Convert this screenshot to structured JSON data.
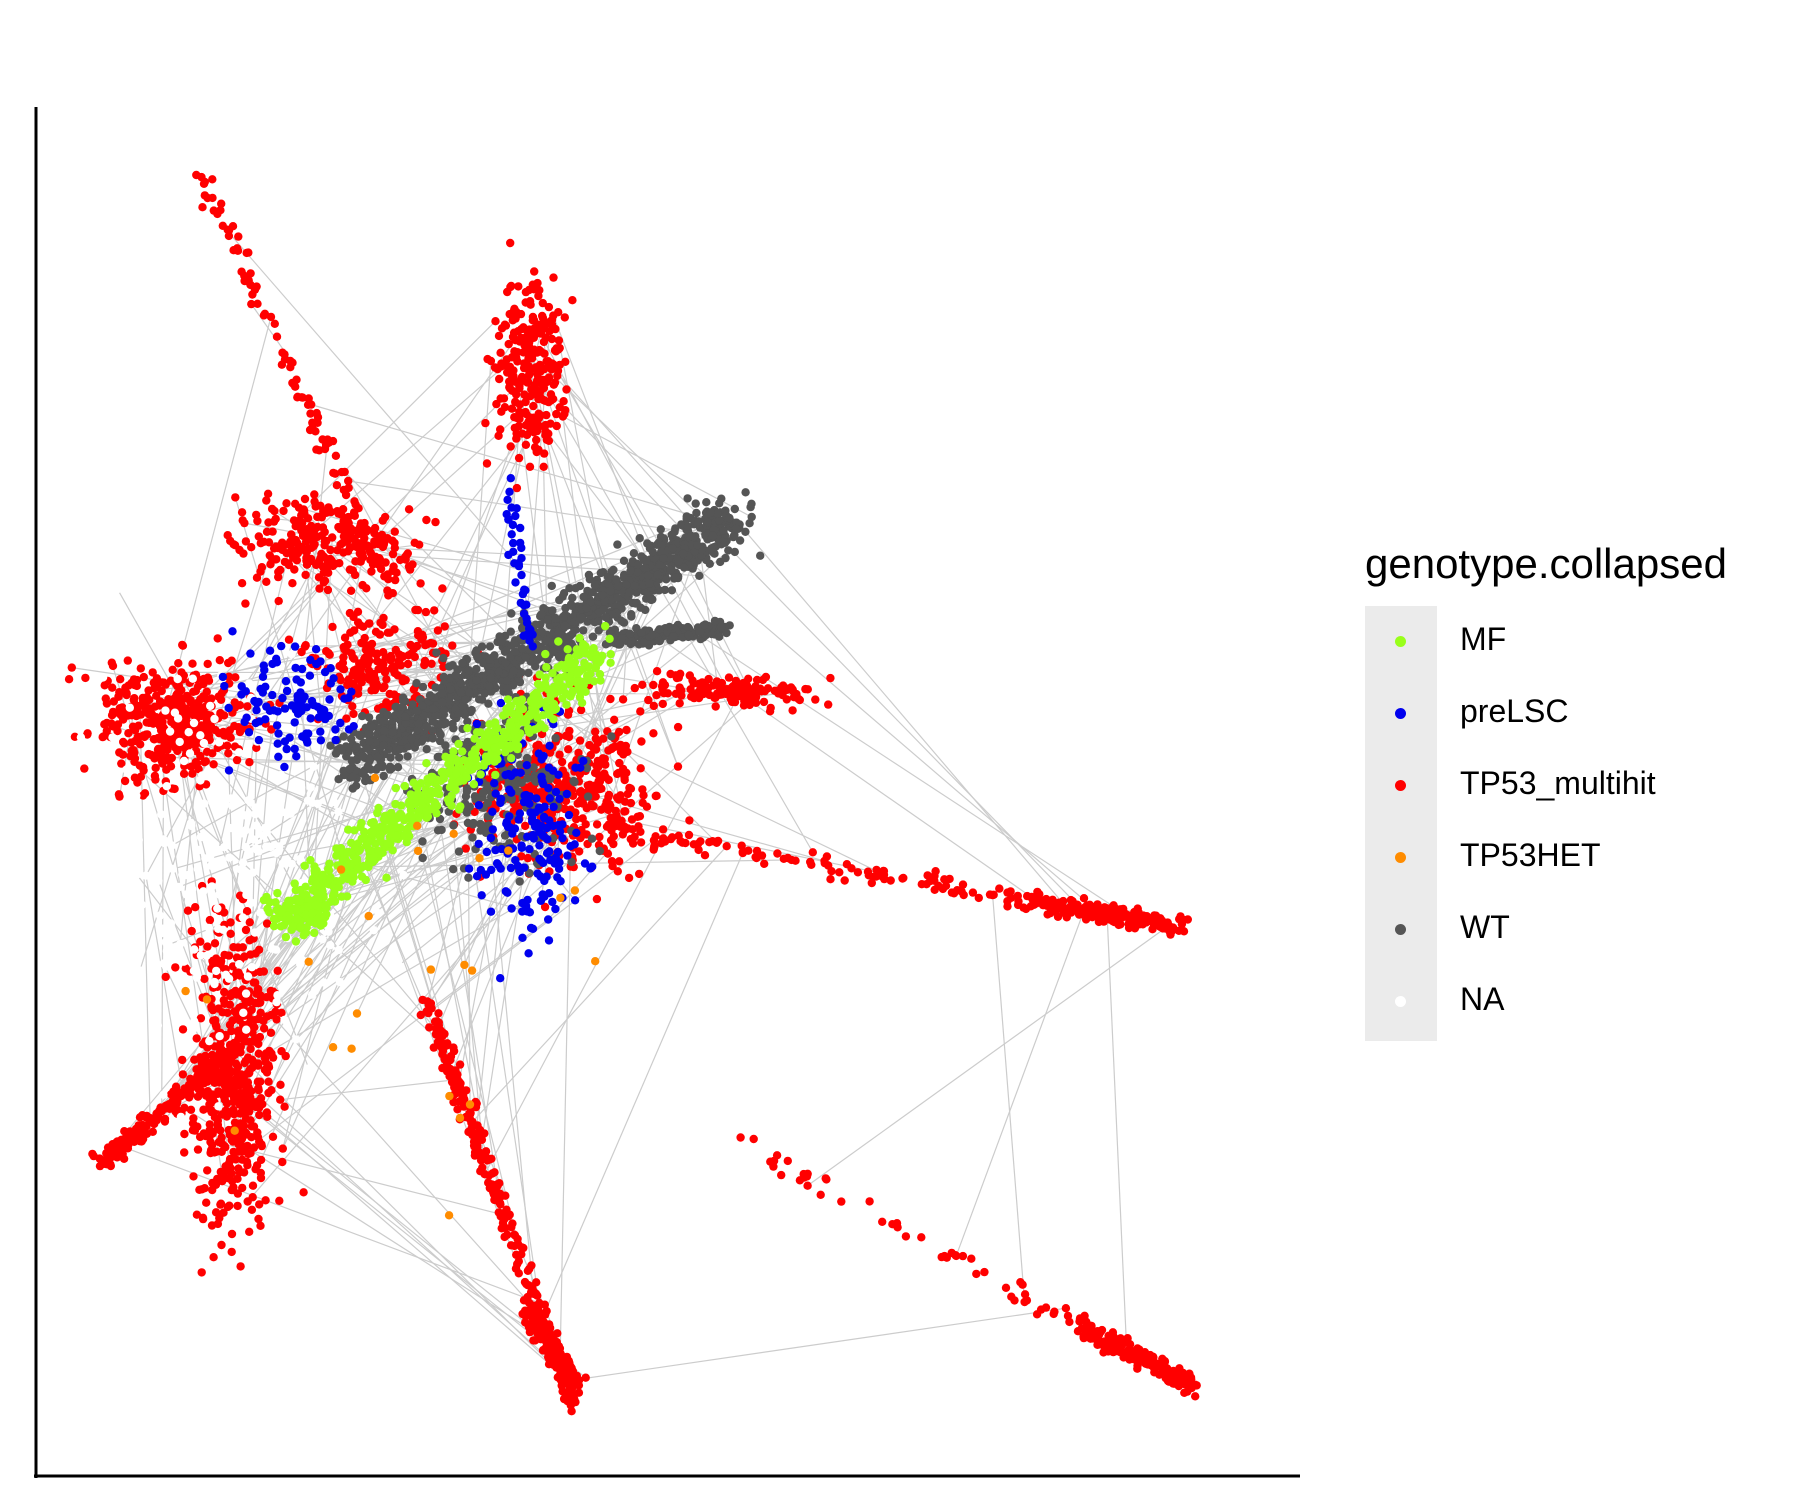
{
  "chart_data": {
    "type": "scatter",
    "title": "",
    "xlabel": "",
    "ylabel": "",
    "axes": {
      "x_ticks": false,
      "y_ticks": false,
      "left_axis_line": true,
      "bottom_axis_line": true
    },
    "grid": false,
    "edges_color": "#cccccc",
    "legend": {
      "title": "genotype.collapsed",
      "placement": "right",
      "entries": [
        {
          "name": "MF",
          "color": "#99ff1a"
        },
        {
          "name": "preLSC",
          "color": "#0000ee"
        },
        {
          "name": "TP53_multihit",
          "color": "#ff0000"
        },
        {
          "name": "TP53HET",
          "color": "#ff8c00"
        },
        {
          "name": "WT",
          "color": "#555555"
        },
        {
          "name": "NA",
          "color": "#ffffff"
        }
      ]
    },
    "series": [
      {
        "name": "MF",
        "color": "#99ff1a",
        "x_range": [
          0.17,
          0.5
        ],
        "y_range": [
          0.35,
          0.57
        ]
      },
      {
        "name": "preLSC",
        "color": "#0000ee",
        "x_range": [
          0.15,
          0.47
        ],
        "y_range": [
          0.33,
          0.73
        ]
      },
      {
        "name": "TP53_multihit",
        "color": "#ff0000",
        "x_range": [
          0.05,
          1.0
        ],
        "y_range": [
          0.0,
          1.0
        ]
      },
      {
        "name": "TP53HET",
        "color": "#ff8c00",
        "x_range": [
          0.08,
          0.97
        ],
        "y_range": [
          0.04,
          0.55
        ]
      },
      {
        "name": "WT",
        "color": "#555555",
        "x_range": [
          0.16,
          0.58
        ],
        "y_range": [
          0.2,
          0.65
        ]
      },
      {
        "name": "NA",
        "color": "#ffffff",
        "x_range": [
          0.05,
          1.0
        ],
        "y_range": [
          0.0,
          1.0
        ]
      }
    ]
  }
}
